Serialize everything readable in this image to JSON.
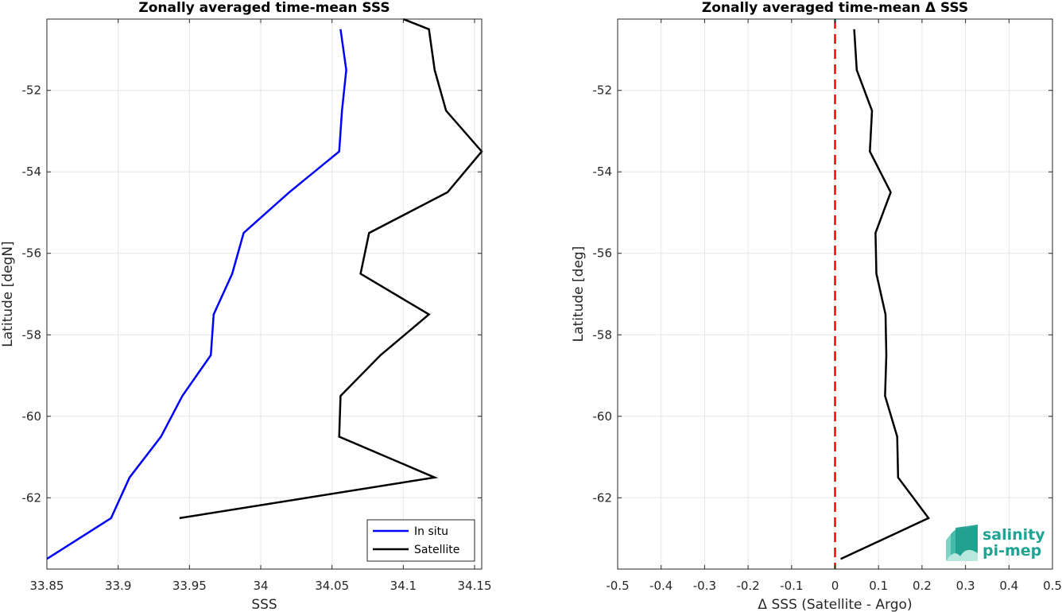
{
  "chart_data": [
    {
      "type": "line",
      "title": "Zonally averaged time-mean SSS",
      "xlabel": "SSS",
      "ylabel": "Latitude [degN]",
      "xlim": [
        33.85,
        34.155
      ],
      "ylim": [
        -63.75,
        -50.25
      ],
      "xticks": [
        33.85,
        33.9,
        33.95,
        34.0,
        34.05,
        34.1,
        34.15
      ],
      "xtick_labels": [
        "33.85",
        "33.9",
        "33.95",
        "34",
        "34.05",
        "34.1",
        "34.15"
      ],
      "yticks": [
        -62,
        -60,
        -58,
        -56,
        -54,
        -52
      ],
      "ytick_labels": [
        "-62",
        "-60",
        "-58",
        "-56",
        "-54",
        "-52"
      ],
      "grid": true,
      "legend_position": "bottom-right",
      "series": [
        {
          "name": "In situ",
          "color": "#0000ff",
          "y": [
            -50.5,
            -51.5,
            -52.5,
            -53.5,
            -54.5,
            -55.5,
            -56.5,
            -57.5,
            -58.5,
            -59.5,
            -60.5,
            -61.5,
            -62.5,
            -63.5
          ],
          "x": [
            34.056,
            34.06,
            34.057,
            34.055,
            34.02,
            33.988,
            33.98,
            33.967,
            33.965,
            33.945,
            33.93,
            33.908,
            33.895,
            33.85
          ]
        },
        {
          "name": "Satellite",
          "color": "#000000",
          "y": [
            -50.25,
            -50.5,
            -51.5,
            -52.5,
            -53.5,
            -54.5,
            -55.5,
            -56.5,
            -57.5,
            -58.5,
            -59.5,
            -60.5,
            -61.5,
            -62.5
          ],
          "x": [
            34.1,
            34.118,
            34.122,
            34.13,
            34.155,
            34.131,
            34.076,
            34.07,
            34.118,
            34.084,
            34.056,
            34.055,
            34.122,
            33.943
          ]
        }
      ]
    },
    {
      "type": "line",
      "title": "Zonally averaged time-mean Δ SSS",
      "xlabel": "Δ SSS (Satellite - Argo)",
      "ylabel": "Latitude [deg]",
      "xlim": [
        -0.5,
        0.5
      ],
      "ylim": [
        -63.75,
        -50.25
      ],
      "xticks": [
        -0.5,
        -0.4,
        -0.3,
        -0.2,
        -0.1,
        0,
        0.1,
        0.2,
        0.3,
        0.4,
        0.5
      ],
      "xtick_labels": [
        "-0.5",
        "-0.4",
        "-0.3",
        "-0.2",
        "-0.1",
        "0",
        "0.1",
        "0.2",
        "0.3",
        "0.4",
        "0.5"
      ],
      "yticks": [
        -62,
        -60,
        -58,
        -56,
        -54,
        -52
      ],
      "ytick_labels": [
        "-62",
        "-60",
        "-58",
        "-56",
        "-54",
        "-52"
      ],
      "grid": true,
      "reference_line": {
        "x": 0,
        "color": "#ff0000",
        "style": "dashed"
      },
      "series": [
        {
          "color": "#000000",
          "y": [
            -50.5,
            -51.5,
            -52.5,
            -53.5,
            -54.5,
            -55.5,
            -56.5,
            -57.5,
            -58.5,
            -59.5,
            -60.5,
            -61.5,
            -62.5,
            -63.5
          ],
          "x": [
            0.044,
            0.05,
            0.085,
            0.08,
            0.128,
            0.093,
            0.095,
            0.116,
            0.118,
            0.115,
            0.143,
            0.145,
            0.215,
            0.013
          ]
        }
      ]
    }
  ],
  "logo": {
    "line1": "salinity",
    "line2": "pi-mep",
    "color": "#1fa393"
  }
}
